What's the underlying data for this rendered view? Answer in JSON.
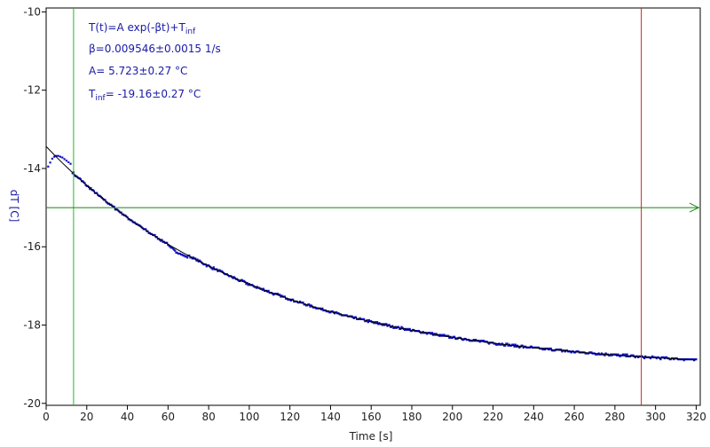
{
  "chart_data": {
    "type": "scatter",
    "xlabel": "Time [s]",
    "ylabel": "dT [C]",
    "xlim": [
      0,
      322
    ],
    "ylim": [
      -20.05,
      -9.9
    ],
    "x_ticks": [
      0,
      20,
      40,
      60,
      80,
      100,
      120,
      140,
      160,
      180,
      200,
      220,
      240,
      260,
      280,
      300,
      320
    ],
    "y_ticks": [
      -10,
      -12,
      -14,
      -16,
      -18,
      -20
    ],
    "grid": false,
    "colors": {
      "data": "#1010c0",
      "fit": "#000000",
      "cursor_left": "#22bb22",
      "cursor_right": "#cc2222",
      "horizontal_line": "#118811",
      "text": "#1a1aa6"
    },
    "fit_annotation": {
      "line1_main": "T(t)=A exp(-βt)+T",
      "line1_sub": "inf",
      "line2": "β=0.009546±0.0015 1/s",
      "line3": "A= 5.723±0.27 °C",
      "line4_main": "T",
      "line4_sub": "inf",
      "line4_rest": "= -19.16±0.27 °C"
    },
    "fit_params": {
      "beta": 0.009546,
      "A": 5.723,
      "T_inf": -19.16
    },
    "cursors": {
      "left_x": 13.5,
      "right_x": 293
    },
    "horizontal_line_y": -15.0,
    "data_start_points": [
      [
        1,
        -13.95
      ],
      [
        2,
        -13.85
      ],
      [
        3,
        -13.75
      ],
      [
        4,
        -13.7
      ],
      [
        5,
        -13.68
      ],
      [
        6,
        -13.68
      ],
      [
        7,
        -13.7
      ],
      [
        8,
        -13.72
      ],
      [
        9,
        -13.76
      ],
      [
        10,
        -13.8
      ],
      [
        11,
        -13.84
      ],
      [
        12,
        -13.88
      ]
    ],
    "data_x_end": 320
  }
}
